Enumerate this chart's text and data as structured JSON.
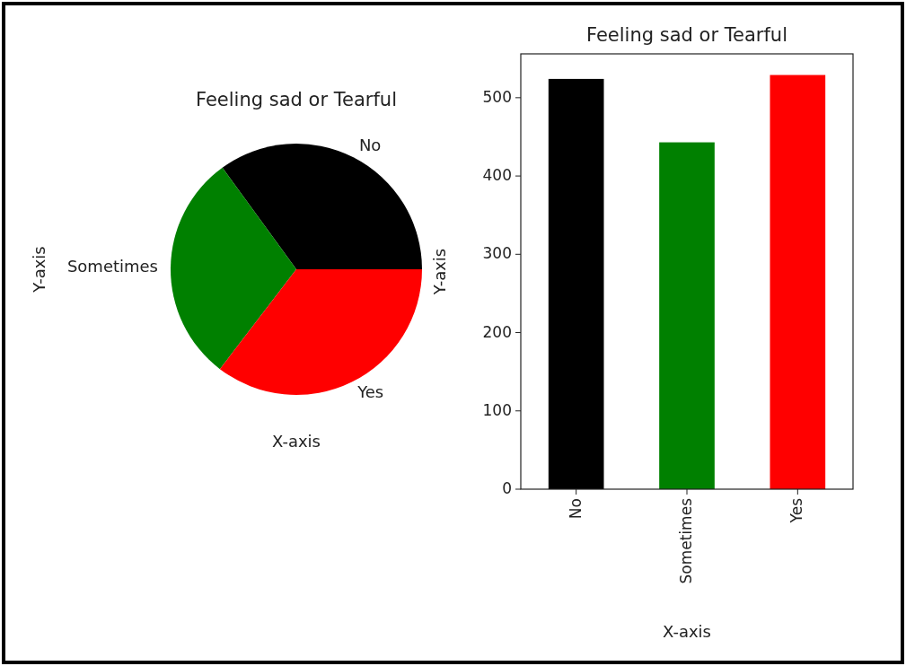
{
  "chart_data": [
    {
      "type": "pie",
      "title": "Feeling sad or  Tearful",
      "xlabel": "X-axis",
      "ylabel": "Y-axis",
      "categories": [
        "No",
        "Sometimes",
        "Yes"
      ],
      "values": [
        35.0,
        29.6,
        35.4
      ],
      "colors": [
        "#000000",
        "#008000",
        "#ff0000"
      ]
    },
    {
      "type": "bar",
      "title": "Feeling sad or  Tearful",
      "xlabel": "X-axis",
      "ylabel": "Y-axis",
      "categories": [
        "No",
        "Sometimes",
        "Yes"
      ],
      "values": [
        524,
        443,
        529
      ],
      "colors": [
        "#000000",
        "#008000",
        "#ff0000"
      ],
      "ylim": [
        0,
        556
      ],
      "yticks": [
        0,
        100,
        200,
        300,
        400,
        500
      ],
      "grid": false
    }
  ]
}
